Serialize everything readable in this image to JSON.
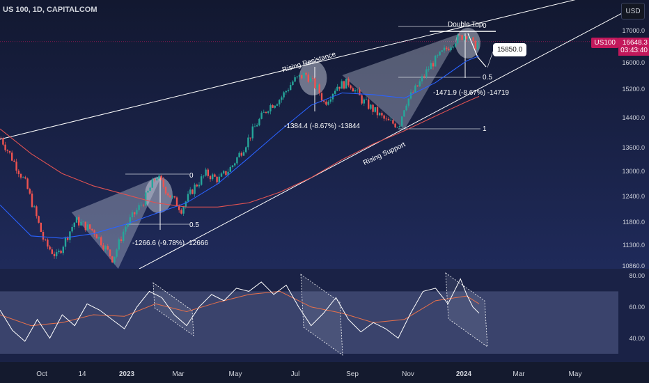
{
  "header": {
    "title": "US 100, 1D, CAPITALCOM",
    "currency_button": "USD"
  },
  "price_tags": {
    "symbol": "US100",
    "price": "16648.3",
    "countdown": "03:43:40",
    "target": "15850.0"
  },
  "annotations": {
    "double_top": "Double Top",
    "rising_resistance": "Rising Resistance",
    "rising_support": "Rising Support",
    "fib_zero_a": "0",
    "fib_half_a": "0.5",
    "fib_zero_b": "0",
    "fib_half_b": "0.5",
    "fib_one_b": "1",
    "drop_1": "-1266.6 (-9.78%) -12666",
    "drop_2": "-1384.4 (-8.67%) -13844",
    "drop_3": "-1471.9 (-8.67%) -14719"
  },
  "colors": {
    "background": "#141a2e",
    "up": "#26a69a",
    "down": "#ef5350",
    "ma50": "#2962ff",
    "ma200": "#e05252",
    "trendline": "#ffffff",
    "price_tag": "#c2185b",
    "rsi": "#ffffff",
    "rsi_ma": "#e8704a"
  },
  "chart_data": [
    {
      "type": "line",
      "title": "US 100, 1D, CAPITALCOM",
      "x_labels": [
        "Oct",
        "14",
        "2023",
        "Mar",
        "May",
        "Jul",
        "Sep",
        "Nov",
        "2024",
        "Mar",
        "May"
      ],
      "y_ticks": [
        10860.0,
        11300.0,
        11800.0,
        12400.0,
        13000.0,
        13600.0,
        14400.0,
        15200.0,
        16000.0,
        17000.0
      ],
      "ylim": [
        10860,
        17500
      ],
      "y_scale": "log",
      "series": [
        {
          "values": [
            [
              0.0,
              13850
            ],
            [
              0.04,
              12700
            ],
            [
              0.07,
              11350
            ],
            [
              0.09,
              11050
            ],
            [
              0.12,
              11850
            ],
            [
              0.15,
              11600
            ],
            [
              0.18,
              11000
            ],
            [
              0.2,
              11700
            ],
            [
              0.23,
              12300
            ],
            [
              0.25,
              12900
            ],
            [
              0.27,
              12450
            ],
            [
              0.29,
              12100
            ],
            [
              0.31,
              12600
            ],
            [
              0.33,
              12950
            ],
            [
              0.35,
              12800
            ],
            [
              0.37,
              13100
            ],
            [
              0.39,
              13600
            ],
            [
              0.41,
              14200
            ],
            [
              0.43,
              14700
            ],
            [
              0.45,
              14950
            ],
            [
              0.47,
              15450
            ],
            [
              0.49,
              15650
            ],
            [
              0.51,
              15200
            ],
            [
              0.52,
              14800
            ],
            [
              0.54,
              15300
            ],
            [
              0.56,
              15400
            ],
            [
              0.58,
              14900
            ],
            [
              0.6,
              14600
            ],
            [
              0.62,
              14300
            ],
            [
              0.64,
              14200
            ],
            [
              0.65,
              14800
            ],
            [
              0.67,
              15300
            ],
            [
              0.69,
              15900
            ],
            [
              0.71,
              16300
            ],
            [
              0.73,
              16700
            ],
            [
              0.75,
              16900
            ],
            [
              0.76,
              16500
            ],
            [
              0.77,
              16648
            ]
          ]
        },
        {
          "values": [
            [
              0.0,
              12200
            ],
            [
              0.05,
              11500
            ],
            [
              0.1,
              11450
            ],
            [
              0.15,
              11550
            ],
            [
              0.2,
              11750
            ],
            [
              0.25,
              12000
            ],
            [
              0.3,
              12250
            ],
            [
              0.35,
              12700
            ],
            [
              0.4,
              13350
            ],
            [
              0.45,
              14050
            ],
            [
              0.5,
              14750
            ],
            [
              0.55,
              15100
            ],
            [
              0.6,
              15050
            ],
            [
              0.65,
              14950
            ],
            [
              0.7,
              15400
            ],
            [
              0.75,
              16050
            ],
            [
              0.77,
              16200
            ]
          ]
        },
        {
          "values": [
            [
              0.0,
              14100
            ],
            [
              0.05,
              13450
            ],
            [
              0.1,
              12950
            ],
            [
              0.15,
              12650
            ],
            [
              0.2,
              12450
            ],
            [
              0.25,
              12250
            ],
            [
              0.3,
              12150
            ],
            [
              0.35,
              12150
            ],
            [
              0.4,
              12250
            ],
            [
              0.45,
              12500
            ],
            [
              0.5,
              12850
            ],
            [
              0.55,
              13300
            ],
            [
              0.6,
              13700
            ],
            [
              0.65,
              14050
            ],
            [
              0.7,
              14450
            ],
            [
              0.75,
              14850
            ],
            [
              0.77,
              15000
            ]
          ]
        }
      ],
      "target": 15850.0,
      "last_price": 16648.3
    },
    {
      "type": "line",
      "y_ticks": [
        40.0,
        60.0,
        80.0
      ],
      "ylim": [
        30,
        80
      ],
      "series": [
        {
          "values": [
            [
              0.0,
              58
            ],
            [
              0.02,
              45
            ],
            [
              0.04,
              38
            ],
            [
              0.06,
              52
            ],
            [
              0.08,
              40
            ],
            [
              0.1,
              55
            ],
            [
              0.12,
              48
            ],
            [
              0.14,
              62
            ],
            [
              0.16,
              58
            ],
            [
              0.18,
              52
            ],
            [
              0.2,
              46
            ],
            [
              0.22,
              60
            ],
            [
              0.24,
              70
            ],
            [
              0.26,
              66
            ],
            [
              0.28,
              55
            ],
            [
              0.3,
              48
            ],
            [
              0.32,
              60
            ],
            [
              0.34,
              68
            ],
            [
              0.36,
              64
            ],
            [
              0.38,
              72
            ],
            [
              0.4,
              70
            ],
            [
              0.42,
              76
            ],
            [
              0.44,
              68
            ],
            [
              0.46,
              74
            ],
            [
              0.48,
              60
            ],
            [
              0.5,
              48
            ],
            [
              0.52,
              56
            ],
            [
              0.54,
              66
            ],
            [
              0.56,
              52
            ],
            [
              0.58,
              44
            ],
            [
              0.6,
              50
            ],
            [
              0.62,
              46
            ],
            [
              0.64,
              40
            ],
            [
              0.66,
              56
            ],
            [
              0.68,
              70
            ],
            [
              0.7,
              72
            ],
            [
              0.72,
              62
            ],
            [
              0.74,
              78
            ],
            [
              0.75,
              68
            ],
            [
              0.76,
              60
            ],
            [
              0.77,
              56
            ]
          ]
        },
        {
          "values": [
            [
              0.0,
              55
            ],
            [
              0.05,
              48
            ],
            [
              0.1,
              50
            ],
            [
              0.15,
              55
            ],
            [
              0.2,
              54
            ],
            [
              0.25,
              62
            ],
            [
              0.3,
              57
            ],
            [
              0.35,
              63
            ],
            [
              0.4,
              68
            ],
            [
              0.45,
              70
            ],
            [
              0.5,
              60
            ],
            [
              0.55,
              56
            ],
            [
              0.6,
              50
            ],
            [
              0.65,
              52
            ],
            [
              0.7,
              64
            ],
            [
              0.75,
              67
            ],
            [
              0.77,
              62
            ]
          ]
        }
      ]
    }
  ]
}
